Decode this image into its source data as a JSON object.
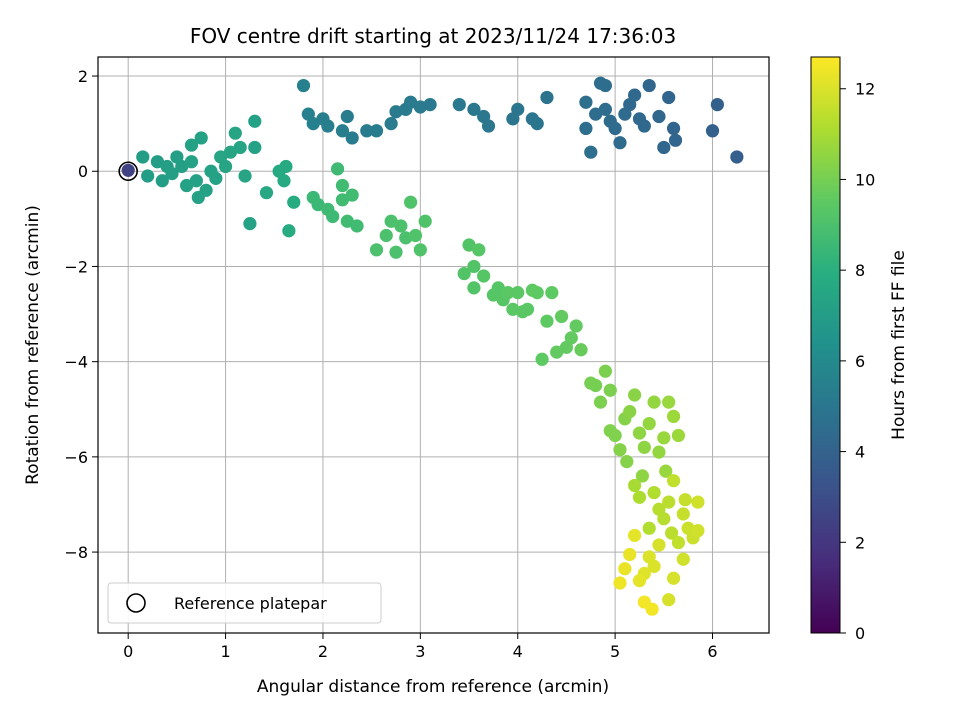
{
  "chart_data": {
    "type": "scatter",
    "title": "FOV centre drift starting at 2023/11/24 17:36:03",
    "xlabel": "Angular distance from reference (arcmin)",
    "ylabel": "Rotation from reference (arcmin)",
    "xlim": [
      -0.31,
      6.58
    ],
    "ylim": [
      -9.7,
      2.4
    ],
    "xticks": [
      0,
      1,
      2,
      3,
      4,
      5,
      6
    ],
    "xtick_labels": [
      "0",
      "1",
      "2",
      "3",
      "4",
      "5",
      "6"
    ],
    "yticks": [
      2,
      0,
      -2,
      -4,
      -6,
      -8
    ],
    "ytick_labels": [
      "2",
      "0",
      "−2",
      "−4",
      "−6",
      "−8"
    ],
    "grid": true,
    "legend": {
      "placement": "lower-left",
      "entries": [
        "Reference platepar"
      ]
    },
    "reference_point": {
      "x": 0,
      "y": 0
    },
    "colorbar": {
      "label": "Hours from first FF file",
      "range": [
        0,
        12.7
      ],
      "ticks": [
        0,
        2,
        4,
        6,
        8,
        10,
        12
      ],
      "tick_labels": [
        "0",
        "2",
        "4",
        "6",
        "8",
        "10",
        "12"
      ],
      "colormap": "viridis"
    },
    "points": [
      {
        "x": 0.0,
        "y": 0.02,
        "c": 2.5
      },
      {
        "x": 0.15,
        "y": 0.3,
        "c": 7.0
      },
      {
        "x": 0.2,
        "y": -0.1,
        "c": 7.0
      },
      {
        "x": 0.3,
        "y": 0.2,
        "c": 7.0
      },
      {
        "x": 0.35,
        "y": -0.2,
        "c": 7.0
      },
      {
        "x": 0.4,
        "y": 0.1,
        "c": 7.1
      },
      {
        "x": 0.45,
        "y": -0.05,
        "c": 7.1
      },
      {
        "x": 0.5,
        "y": 0.3,
        "c": 7.1
      },
      {
        "x": 0.55,
        "y": 0.1,
        "c": 7.1
      },
      {
        "x": 0.6,
        "y": -0.3,
        "c": 7.2
      },
      {
        "x": 0.65,
        "y": 0.55,
        "c": 7.2
      },
      {
        "x": 0.65,
        "y": 0.2,
        "c": 7.2
      },
      {
        "x": 0.7,
        "y": -0.2,
        "c": 7.2
      },
      {
        "x": 0.72,
        "y": -0.55,
        "c": 7.2
      },
      {
        "x": 0.75,
        "y": 0.7,
        "c": 7.3
      },
      {
        "x": 0.8,
        "y": -0.4,
        "c": 7.3
      },
      {
        "x": 0.85,
        "y": 0.0,
        "c": 7.3
      },
      {
        "x": 0.9,
        "y": -0.15,
        "c": 7.3
      },
      {
        "x": 0.95,
        "y": 0.3,
        "c": 7.4
      },
      {
        "x": 1.0,
        "y": 0.1,
        "c": 7.4
      },
      {
        "x": 1.05,
        "y": 0.4,
        "c": 7.4
      },
      {
        "x": 1.1,
        "y": 0.8,
        "c": 7.4
      },
      {
        "x": 1.15,
        "y": 0.5,
        "c": 7.4
      },
      {
        "x": 1.2,
        "y": -0.1,
        "c": 7.4
      },
      {
        "x": 1.25,
        "y": -1.1,
        "c": 7.3
      },
      {
        "x": 1.3,
        "y": 0.5,
        "c": 7.3
      },
      {
        "x": 1.3,
        "y": 1.05,
        "c": 7.2
      },
      {
        "x": 1.42,
        "y": -0.45,
        "c": 7.6
      },
      {
        "x": 1.55,
        "y": 0.0,
        "c": 7.7
      },
      {
        "x": 1.6,
        "y": -0.2,
        "c": 7.7
      },
      {
        "x": 1.62,
        "y": 0.1,
        "c": 7.7
      },
      {
        "x": 1.65,
        "y": -1.25,
        "c": 7.8
      },
      {
        "x": 1.7,
        "y": -0.65,
        "c": 7.8
      },
      {
        "x": 1.8,
        "y": 1.8,
        "c": 5.5
      },
      {
        "x": 1.85,
        "y": 1.2,
        "c": 5.5
      },
      {
        "x": 1.9,
        "y": 1.0,
        "c": 5.5
      },
      {
        "x": 2.0,
        "y": 1.1,
        "c": 5.4
      },
      {
        "x": 2.05,
        "y": 0.95,
        "c": 5.4
      },
      {
        "x": 2.2,
        "y": 0.85,
        "c": 5.4
      },
      {
        "x": 2.25,
        "y": 1.15,
        "c": 5.3
      },
      {
        "x": 2.3,
        "y": 0.7,
        "c": 5.3
      },
      {
        "x": 2.45,
        "y": 0.85,
        "c": 5.3
      },
      {
        "x": 2.55,
        "y": 0.85,
        "c": 5.3
      },
      {
        "x": 2.7,
        "y": 1.0,
        "c": 5.2
      },
      {
        "x": 2.75,
        "y": 1.25,
        "c": 5.2
      },
      {
        "x": 2.85,
        "y": 1.3,
        "c": 5.2
      },
      {
        "x": 2.9,
        "y": 1.45,
        "c": 5.2
      },
      {
        "x": 3.0,
        "y": 1.35,
        "c": 5.2
      },
      {
        "x": 3.1,
        "y": 1.4,
        "c": 5.1
      },
      {
        "x": 3.4,
        "y": 1.4,
        "c": 5.1
      },
      {
        "x": 3.55,
        "y": 1.3,
        "c": 5.0
      },
      {
        "x": 3.65,
        "y": 1.15,
        "c": 5.0
      },
      {
        "x": 3.7,
        "y": 0.95,
        "c": 5.0
      },
      {
        "x": 3.95,
        "y": 1.1,
        "c": 4.9
      },
      {
        "x": 4.0,
        "y": 1.3,
        "c": 4.9
      },
      {
        "x": 4.15,
        "y": 1.1,
        "c": 4.9
      },
      {
        "x": 4.2,
        "y": 1.0,
        "c": 4.9
      },
      {
        "x": 4.3,
        "y": 1.55,
        "c": 4.8
      },
      {
        "x": 4.7,
        "y": 1.45,
        "c": 4.6
      },
      {
        "x": 4.7,
        "y": 0.9,
        "c": 4.6
      },
      {
        "x": 4.75,
        "y": 0.4,
        "c": 4.6
      },
      {
        "x": 4.8,
        "y": 1.2,
        "c": 4.5
      },
      {
        "x": 4.85,
        "y": 1.85,
        "c": 4.5
      },
      {
        "x": 4.9,
        "y": 1.8,
        "c": 4.5
      },
      {
        "x": 4.9,
        "y": 1.3,
        "c": 4.5
      },
      {
        "x": 4.95,
        "y": 1.05,
        "c": 4.4
      },
      {
        "x": 5.0,
        "y": 0.9,
        "c": 4.4
      },
      {
        "x": 5.05,
        "y": 0.6,
        "c": 4.4
      },
      {
        "x": 5.1,
        "y": 1.2,
        "c": 4.4
      },
      {
        "x": 5.15,
        "y": 1.4,
        "c": 4.3
      },
      {
        "x": 5.2,
        "y": 1.6,
        "c": 4.3
      },
      {
        "x": 5.25,
        "y": 1.1,
        "c": 4.3
      },
      {
        "x": 5.3,
        "y": 0.95,
        "c": 4.3
      },
      {
        "x": 5.35,
        "y": 1.8,
        "c": 4.2
      },
      {
        "x": 5.45,
        "y": 1.15,
        "c": 4.2
      },
      {
        "x": 5.5,
        "y": 0.5,
        "c": 4.2
      },
      {
        "x": 5.55,
        "y": 1.55,
        "c": 4.1
      },
      {
        "x": 5.6,
        "y": 0.9,
        "c": 4.1
      },
      {
        "x": 5.62,
        "y": 0.65,
        "c": 4.1
      },
      {
        "x": 6.0,
        "y": 0.85,
        "c": 3.9
      },
      {
        "x": 6.05,
        "y": 1.4,
        "c": 3.9
      },
      {
        "x": 6.25,
        "y": 0.3,
        "c": 3.8
      },
      {
        "x": 1.9,
        "y": -0.55,
        "c": 8.5
      },
      {
        "x": 1.95,
        "y": -0.7,
        "c": 8.5
      },
      {
        "x": 2.05,
        "y": -0.8,
        "c": 8.6
      },
      {
        "x": 2.1,
        "y": -0.95,
        "c": 8.6
      },
      {
        "x": 2.15,
        "y": 0.05,
        "c": 8.6
      },
      {
        "x": 2.2,
        "y": -0.3,
        "c": 8.7
      },
      {
        "x": 2.2,
        "y": -0.6,
        "c": 8.7
      },
      {
        "x": 2.25,
        "y": -1.05,
        "c": 8.7
      },
      {
        "x": 2.3,
        "y": -0.5,
        "c": 8.7
      },
      {
        "x": 2.35,
        "y": -1.15,
        "c": 8.7
      },
      {
        "x": 2.55,
        "y": -1.65,
        "c": 9.0
      },
      {
        "x": 2.65,
        "y": -1.35,
        "c": 9.0
      },
      {
        "x": 2.7,
        "y": -1.05,
        "c": 9.0
      },
      {
        "x": 2.75,
        "y": -1.7,
        "c": 9.0
      },
      {
        "x": 2.8,
        "y": -1.15,
        "c": 9.0
      },
      {
        "x": 2.85,
        "y": -1.4,
        "c": 9.0
      },
      {
        "x": 2.9,
        "y": -0.65,
        "c": 9.1
      },
      {
        "x": 2.95,
        "y": -1.35,
        "c": 9.1
      },
      {
        "x": 3.0,
        "y": -1.65,
        "c": 9.1
      },
      {
        "x": 3.05,
        "y": -1.05,
        "c": 9.1
      },
      {
        "x": 3.45,
        "y": -2.15,
        "c": 9.2
      },
      {
        "x": 3.5,
        "y": -1.55,
        "c": 9.2
      },
      {
        "x": 3.55,
        "y": -2.0,
        "c": 9.2
      },
      {
        "x": 3.55,
        "y": -2.45,
        "c": 9.2
      },
      {
        "x": 3.6,
        "y": -1.65,
        "c": 9.3
      },
      {
        "x": 3.65,
        "y": -2.2,
        "c": 9.3
      },
      {
        "x": 3.75,
        "y": -2.6,
        "c": 9.3
      },
      {
        "x": 3.8,
        "y": -2.45,
        "c": 9.3
      },
      {
        "x": 3.85,
        "y": -2.7,
        "c": 9.3
      },
      {
        "x": 3.9,
        "y": -2.55,
        "c": 9.4
      },
      {
        "x": 3.95,
        "y": -2.9,
        "c": 9.4
      },
      {
        "x": 4.0,
        "y": -2.55,
        "c": 9.4
      },
      {
        "x": 4.05,
        "y": -2.95,
        "c": 9.4
      },
      {
        "x": 4.1,
        "y": -2.9,
        "c": 9.4
      },
      {
        "x": 4.15,
        "y": -2.5,
        "c": 9.5
      },
      {
        "x": 4.2,
        "y": -2.55,
        "c": 9.5
      },
      {
        "x": 4.25,
        "y": -3.95,
        "c": 9.5
      },
      {
        "x": 4.3,
        "y": -3.15,
        "c": 9.5
      },
      {
        "x": 4.35,
        "y": -2.55,
        "c": 9.5
      },
      {
        "x": 4.4,
        "y": -3.8,
        "c": 9.6
      },
      {
        "x": 4.45,
        "y": -3.05,
        "c": 9.6
      },
      {
        "x": 4.5,
        "y": -3.7,
        "c": 9.6
      },
      {
        "x": 4.55,
        "y": -3.5,
        "c": 9.6
      },
      {
        "x": 4.6,
        "y": -3.25,
        "c": 9.6
      },
      {
        "x": 4.65,
        "y": -3.75,
        "c": 9.7
      },
      {
        "x": 4.75,
        "y": -4.45,
        "c": 10.0
      },
      {
        "x": 4.8,
        "y": -4.5,
        "c": 10.0
      },
      {
        "x": 4.85,
        "y": -4.85,
        "c": 10.1
      },
      {
        "x": 4.9,
        "y": -4.2,
        "c": 10.1
      },
      {
        "x": 4.95,
        "y": -4.6,
        "c": 10.1
      },
      {
        "x": 4.95,
        "y": -5.45,
        "c": 10.2
      },
      {
        "x": 5.0,
        "y": -5.55,
        "c": 10.2
      },
      {
        "x": 5.05,
        "y": -5.85,
        "c": 10.3
      },
      {
        "x": 5.1,
        "y": -5.2,
        "c": 10.3
      },
      {
        "x": 5.12,
        "y": -6.1,
        "c": 10.3
      },
      {
        "x": 5.15,
        "y": -5.05,
        "c": 10.4
      },
      {
        "x": 5.2,
        "y": -4.7,
        "c": 10.4
      },
      {
        "x": 5.25,
        "y": -5.5,
        "c": 10.5
      },
      {
        "x": 5.28,
        "y": -6.4,
        "c": 10.5
      },
      {
        "x": 5.3,
        "y": -5.8,
        "c": 10.5
      },
      {
        "x": 5.35,
        "y": -5.3,
        "c": 10.6
      },
      {
        "x": 5.4,
        "y": -4.85,
        "c": 10.6
      },
      {
        "x": 5.45,
        "y": -5.9,
        "c": 10.6
      },
      {
        "x": 5.5,
        "y": -5.6,
        "c": 10.7
      },
      {
        "x": 5.52,
        "y": -6.3,
        "c": 10.7
      },
      {
        "x": 5.55,
        "y": -4.85,
        "c": 10.7
      },
      {
        "x": 5.6,
        "y": -5.15,
        "c": 10.8
      },
      {
        "x": 5.65,
        "y": -5.55,
        "c": 10.8
      },
      {
        "x": 5.2,
        "y": -6.6,
        "c": 11.0
      },
      {
        "x": 5.25,
        "y": -6.85,
        "c": 11.1
      },
      {
        "x": 5.35,
        "y": -7.5,
        "c": 11.2
      },
      {
        "x": 5.4,
        "y": -6.75,
        "c": 11.2
      },
      {
        "x": 5.45,
        "y": -7.1,
        "c": 11.3
      },
      {
        "x": 5.5,
        "y": -7.3,
        "c": 11.3
      },
      {
        "x": 5.55,
        "y": -6.95,
        "c": 11.4
      },
      {
        "x": 5.58,
        "y": -7.6,
        "c": 11.4
      },
      {
        "x": 5.6,
        "y": -6.5,
        "c": 11.5
      },
      {
        "x": 5.65,
        "y": -7.8,
        "c": 11.5
      },
      {
        "x": 5.7,
        "y": -7.2,
        "c": 11.6
      },
      {
        "x": 5.72,
        "y": -6.9,
        "c": 11.6
      },
      {
        "x": 5.75,
        "y": -7.5,
        "c": 11.7
      },
      {
        "x": 5.8,
        "y": -7.7,
        "c": 11.7
      },
      {
        "x": 5.85,
        "y": -6.95,
        "c": 11.8
      },
      {
        "x": 5.85,
        "y": -7.55,
        "c": 11.8
      },
      {
        "x": 5.7,
        "y": -8.15,
        "c": 11.8
      },
      {
        "x": 5.6,
        "y": -8.55,
        "c": 11.9
      },
      {
        "x": 5.55,
        "y": -9.0,
        "c": 11.9
      },
      {
        "x": 5.45,
        "y": -7.85,
        "c": 11.9
      },
      {
        "x": 5.4,
        "y": -8.3,
        "c": 12.0
      },
      {
        "x": 5.35,
        "y": -8.1,
        "c": 12.0
      },
      {
        "x": 5.3,
        "y": -8.45,
        "c": 12.1
      },
      {
        "x": 5.25,
        "y": -8.6,
        "c": 12.2
      },
      {
        "x": 5.2,
        "y": -7.65,
        "c": 12.2
      },
      {
        "x": 5.15,
        "y": -8.05,
        "c": 12.3
      },
      {
        "x": 5.1,
        "y": -8.35,
        "c": 12.3
      },
      {
        "x": 5.05,
        "y": -8.65,
        "c": 12.4
      },
      {
        "x": 5.3,
        "y": -9.05,
        "c": 12.5
      },
      {
        "x": 5.38,
        "y": -9.2,
        "c": 12.5
      }
    ]
  }
}
